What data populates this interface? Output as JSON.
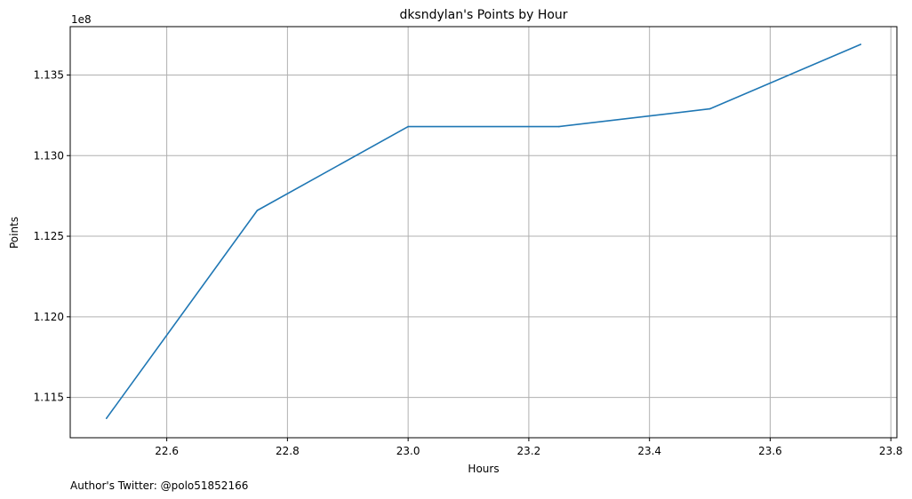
{
  "chart_data": {
    "type": "line",
    "title": "dksndylan's Points by Hour",
    "xlabel": "Hours",
    "ylabel": "Points",
    "y_offset_label": "1e8",
    "footnote": "Author's Twitter: @polo51852166",
    "grid": true,
    "xlim": [
      22.44,
      23.81
    ],
    "ylim": [
      1.1125,
      1.138
    ],
    "x_ticks": [
      22.6,
      22.8,
      23.0,
      23.2,
      23.4,
      23.6,
      23.8
    ],
    "x_tick_labels": [
      "22.6",
      "22.8",
      "23.0",
      "23.2",
      "23.4",
      "23.6",
      "23.8"
    ],
    "y_ticks": [
      1.115,
      1.12,
      1.125,
      1.13,
      1.135
    ],
    "y_tick_labels": [
      "1.115",
      "1.120",
      "1.125",
      "1.130",
      "1.135"
    ],
    "series": [
      {
        "name": "dksndylan",
        "color": "#1f77b4",
        "x": [
          22.5,
          22.75,
          23.0,
          23.25,
          23.5,
          23.75
        ],
        "y": [
          1.1137,
          1.1266,
          1.1318,
          1.1318,
          1.1329,
          1.1369
        ]
      }
    ]
  }
}
